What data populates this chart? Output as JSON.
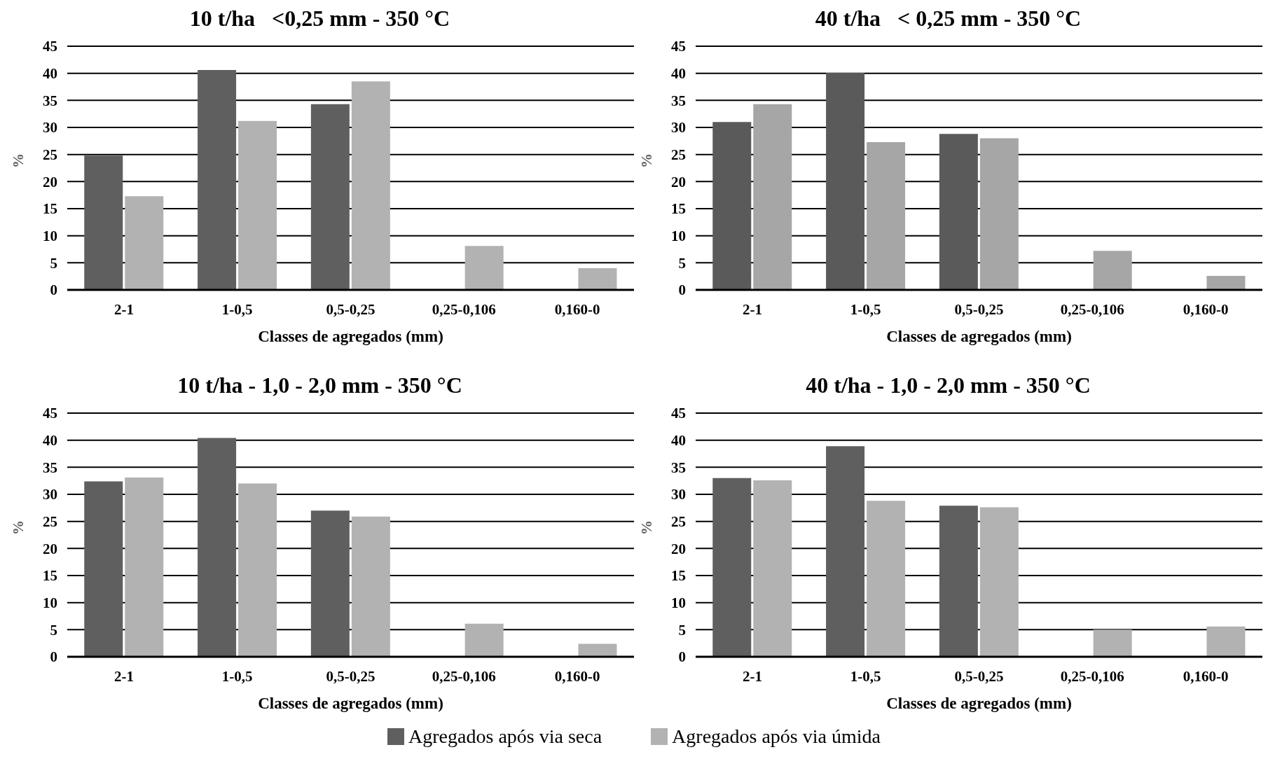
{
  "chart_data": [
    {
      "type": "bar",
      "title": "10 t/ha   <0,25 mm - 350 °C",
      "xlabel": "Classes de agregados (mm)",
      "ylabel": "%",
      "categories": [
        "2-1",
        "1-0,5",
        "0,5-0,25",
        "0,25-0,106",
        "0,160-0"
      ],
      "series": [
        {
          "name": "Agregados após via seca",
          "color": "#5f5f5f",
          "values": [
            24.8,
            40.6,
            34.3,
            null,
            null
          ]
        },
        {
          "name": "Agregados após via úmida",
          "color": "#b2b2b2",
          "values": [
            17.3,
            31.2,
            38.5,
            8.1,
            4.0
          ]
        }
      ],
      "ylim": [
        0,
        45
      ],
      "yticks": [
        0,
        5,
        10,
        15,
        20,
        25,
        30,
        35,
        40,
        45
      ],
      "grid": "y",
      "legend": "bottom"
    },
    {
      "type": "bar",
      "title": "40 t/ha   < 0,25 mm - 350 °C",
      "xlabel": "Classes de agregados (mm)",
      "ylabel": "%",
      "categories": [
        "2-1",
        "1-0,5",
        "0,5-0,25",
        "0,25-0,106",
        "0,160-0"
      ],
      "series": [
        {
          "name": "Agregados após via seca",
          "color": "#5a5a5a",
          "values": [
            31.0,
            40.1,
            28.8,
            null,
            null
          ]
        },
        {
          "name": "Agregados após via úmida",
          "color": "#a6a6a6",
          "values": [
            34.3,
            27.3,
            28.0,
            7.2,
            2.6
          ]
        }
      ],
      "ylim": [
        0,
        45
      ],
      "yticks": [
        0,
        5,
        10,
        15,
        20,
        25,
        30,
        35,
        40,
        45
      ],
      "grid": "y",
      "legend": "bottom"
    },
    {
      "type": "bar",
      "title": "10 t/ha - 1,0 - 2,0 mm - 350 °C",
      "xlabel": "Classes de agregados (mm)",
      "ylabel": "%",
      "categories": [
        "2-1",
        "1-0,5",
        "0,5-0,25",
        "0,25-0,106",
        "0,160-0"
      ],
      "series": [
        {
          "name": "Agregados após via seca",
          "color": "#5f5f5f",
          "values": [
            32.4,
            40.4,
            27.0,
            null,
            null
          ]
        },
        {
          "name": "Agregados após via úmida",
          "color": "#b2b2b2",
          "values": [
            33.1,
            32.0,
            25.9,
            6.1,
            2.4
          ]
        }
      ],
      "ylim": [
        0,
        45
      ],
      "yticks": [
        0,
        5,
        10,
        15,
        20,
        25,
        30,
        35,
        40,
        45
      ],
      "grid": "y",
      "legend": "bottom"
    },
    {
      "type": "bar",
      "title": "40 t/ha - 1,0 - 2,0 mm - 350 °C",
      "xlabel": "Classes de agregados (mm)",
      "ylabel": "%",
      "categories": [
        "2-1",
        "1-0,5",
        "0,5-0,25",
        "0,25-0,106",
        "0,160-0"
      ],
      "series": [
        {
          "name": "Agregados após via seca",
          "color": "#5f5f5f",
          "values": [
            33.0,
            38.9,
            27.9,
            null,
            null
          ]
        },
        {
          "name": "Agregados após via úmida",
          "color": "#b2b2b2",
          "values": [
            32.6,
            28.8,
            27.6,
            5.0,
            5.6
          ]
        }
      ],
      "ylim": [
        0,
        45
      ],
      "yticks": [
        0,
        5,
        10,
        15,
        20,
        25,
        30,
        35,
        40,
        45
      ],
      "grid": "y",
      "legend": "bottom"
    }
  ]
}
